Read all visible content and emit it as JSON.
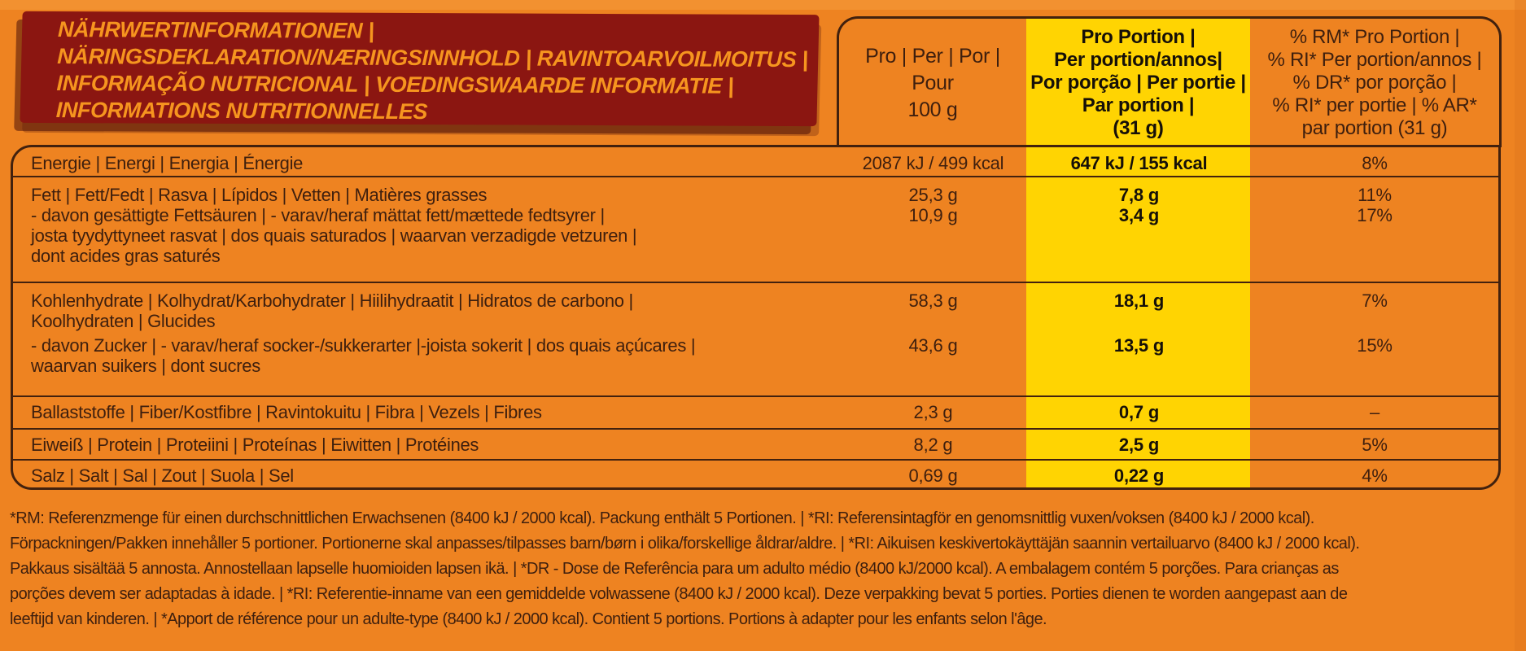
{
  "title": {
    "lines": [
      "NÄHRWERTINFORMATIONEN |",
      "NÄRINGSDEKLARATION/NÆRINGSINNHOLD | RAVINTOARVOILMOITUS |",
      "INFORMAÇÃO NUTRICIONAL | VOEDINGSWAARDE INFORMATIE |",
      "INFORMATIONS NUTRITIONNELLES"
    ]
  },
  "columns": {
    "per100": {
      "lines": [
        "Pro | Per | Por |",
        "Pour",
        "100 g"
      ]
    },
    "portion": {
      "lines": [
        "Pro Portion |",
        "Per portion/annos|",
        "Por porção | Per portie |",
        "Par portion |",
        "(31 g)"
      ]
    },
    "pct": {
      "lines": [
        "% RM* Pro Portion |",
        "% RI* Per portion/annos |",
        "% DR* por porção |",
        "% RI* per portie | % AR*",
        "par portion (31 g)"
      ]
    }
  },
  "table": {
    "rows": [
      {
        "name": "energy",
        "subrows": [
          {
            "lines": [
              "Energie | Energi | Energia | Énergie"
            ],
            "per100": "2087 kJ / 499 kcal",
            "portion": "647 kJ / 155 kcal",
            "pct": "8%"
          }
        ]
      },
      {
        "name": "fat",
        "subrows": [
          {
            "lines": [
              "Fett | Fett/Fedt | Rasva | Lípidos | Vetten | Matières grasses"
            ],
            "per100": "25,3 g",
            "portion": "7,8 g",
            "pct": "11%"
          },
          {
            "lines": [
              "- davon gesättigte Fettsäuren | - varav/heraf mättat fett/mættede fedtsyrer |",
              "josta tyydyttyneet rasvat | dos quais saturados | waarvan verzadigde vetzuren |",
              "dont acides gras saturés"
            ],
            "per100": "10,9 g",
            "portion": "3,4 g",
            "pct": "17%"
          }
        ]
      },
      {
        "name": "carbohydrate",
        "subrows": [
          {
            "lines": [
              "Kohlenhydrate | Kolhydrat/Karbohydrater | Hiilihydraatit | Hidratos de carbono |",
              "Koolhydraten | Glucides"
            ],
            "per100": "58,3 g",
            "portion": "18,1 g",
            "pct": "7%"
          },
          {
            "lines": [
              "- davon Zucker | - varav/heraf socker-/sukkerarter |-joista sokerit | dos quais açúcares |",
              "waarvan suikers  | dont sucres"
            ],
            "per100": "43,6 g",
            "portion": "13,5 g",
            "pct": "15%"
          }
        ]
      },
      {
        "name": "fibre",
        "subrows": [
          {
            "lines": [
              "Ballaststoffe | Fiber/Kostfibre | Ravintokuitu | Fibra | Vezels | Fibres"
            ],
            "per100": "2,3 g",
            "portion": "0,7 g",
            "pct": "–"
          }
        ]
      },
      {
        "name": "protein",
        "subrows": [
          {
            "lines": [
              "Eiweiß | Protein | Proteiini | Proteínas | Eiwitten | Protéines"
            ],
            "per100": "8,2 g",
            "portion": "2,5 g",
            "pct": "5%"
          }
        ]
      },
      {
        "name": "salt",
        "subrows": [
          {
            "lines": [
              "Salz | Salt | Sal | Zout | Suola | Sel"
            ],
            "per100": "0,69 g",
            "portion": "0,22 g",
            "pct": "4%"
          }
        ]
      }
    ]
  },
  "footnote": {
    "lines": [
      "*RM: Referenzmenge für einen durchschnittlichen Erwachsenen (8400 kJ / 2000 kcal). Packung enthält 5 Portionen. | *RI: Referensintagför en genomsnittlig vuxen/voksen (8400 kJ / 2000 kcal).",
      "Förpackningen/Pakken innehåller 5 portioner. Portionerne skal anpasses/tilpasses barn/børn i olika/forskellige åldrar/aldre. | *RI: Aikuisen keskivertokäyttäjän saannin vertailuarvo (8400 kJ / 2000 kcal).",
      "Pakkaus sisältää 5 annosta. Annostellaan lapselle huomioiden lapsen ikä. | *DR - Dose de Referência para um adulto médio (8400 kJ/2000 kcal). A embalagem contém 5 porções. Para crianças as",
      "porções  devem ser adaptadas à idade. | *RI: Referentie-inname van een gemiddelde volwassene (8400 kJ / 2000 kcal). Deze verpakking bevat 5 porties. Porties dienen te worden aangepast aan de",
      "leeftijd van kinderen. | *Apport de référence pour un adulte-type (8400 kJ / 2000 kcal). Contient 5 portions. Portions à adapter pour les enfants selon l'âge."
    ]
  },
  "colors": {
    "background_orange": "#EE8321",
    "highlight_yellow": "#FFD402",
    "title_plate_red": "#8B1611",
    "title_text_orange": "#F6951F",
    "text_brown": "#3E1F0E",
    "text_black": "#161008",
    "border_brown": "#42210E"
  }
}
